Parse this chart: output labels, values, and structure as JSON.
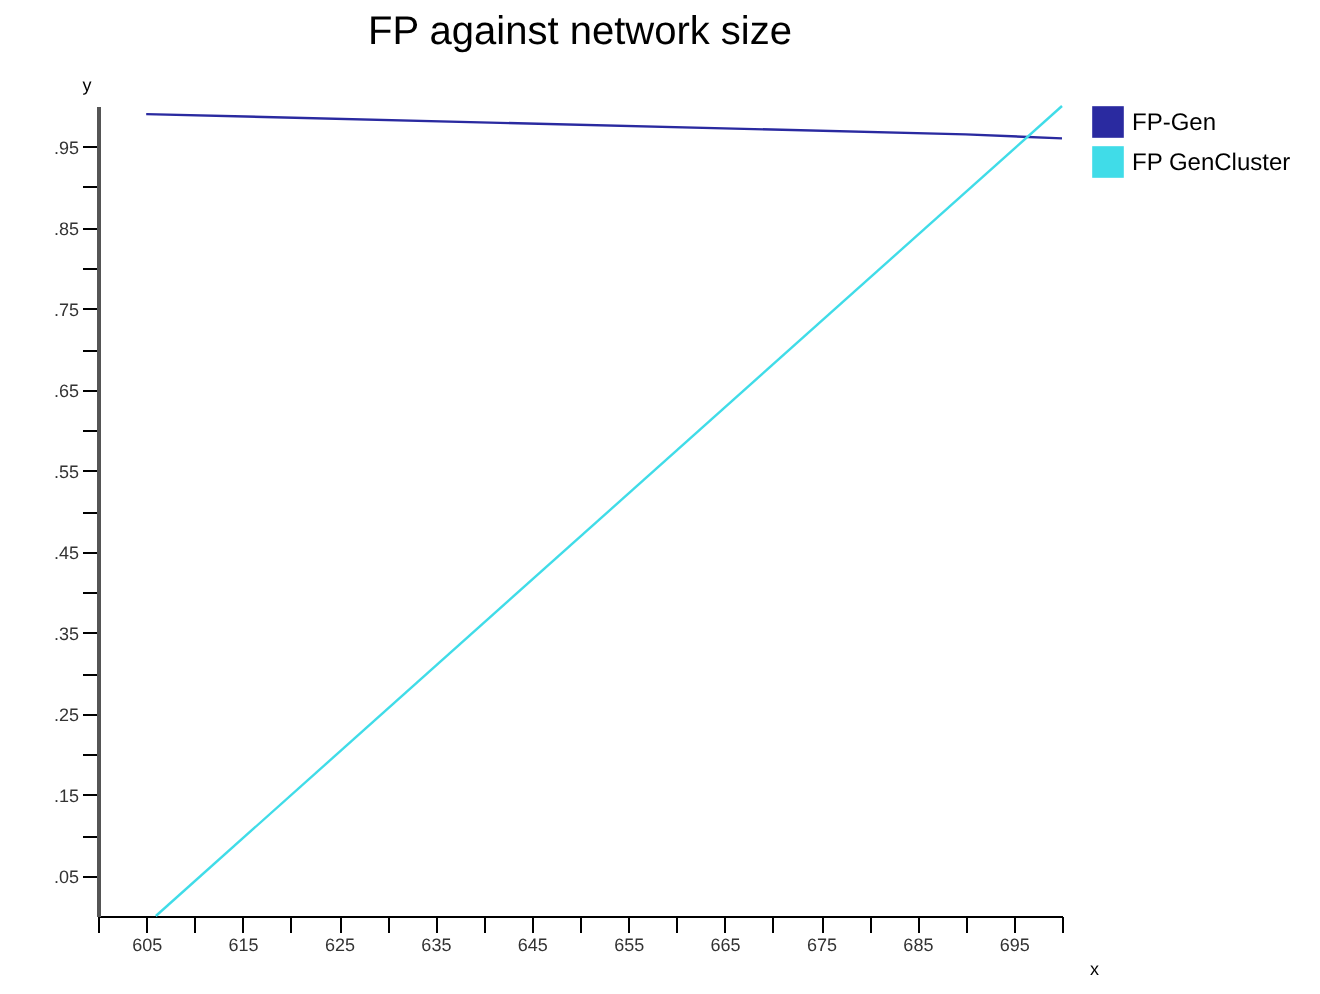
{
  "chart_data": {
    "type": "line",
    "title": "FP against network size",
    "xlabel": "x",
    "ylabel": "y",
    "series": [
      {
        "name": "FP-Gen",
        "color": "#2a2aa0",
        "x": [
          605,
          690,
          700
        ],
        "values": [
          0.99,
          0.965,
          0.96
        ]
      },
      {
        "name": "FP GenCluster",
        "color": "#40dce8",
        "x": [
          606,
          700
        ],
        "values": [
          0,
          1.0
        ]
      }
    ],
    "xlim": [
      600,
      700
    ],
    "xticks": [
      {
        "value": 600,
        "label": null
      },
      605,
      {
        "value": 610,
        "label": null
      },
      615,
      {
        "value": 620,
        "label": null
      },
      625,
      {
        "value": 630,
        "label": null
      },
      635,
      {
        "value": 640,
        "label": null
      },
      645,
      {
        "value": 650,
        "label": null
      },
      655,
      {
        "value": 660,
        "label": null
      },
      665,
      {
        "value": 670,
        "label": null
      },
      675,
      {
        "value": 680,
        "label": null
      },
      685,
      {
        "value": 690,
        "label": null
      },
      695,
      {
        "value": 700,
        "label": null
      }
    ],
    "ylim": [
      0,
      1.0
    ],
    "yticks": [
      {
        "value": 0.05,
        "label": ".05"
      },
      {
        "value": 0.1,
        "label": null
      },
      {
        "value": 0.15,
        "label": ".15"
      },
      {
        "value": 0.2,
        "label": null
      },
      {
        "value": 0.25,
        "label": ".25"
      },
      {
        "value": 0.3,
        "label": null
      },
      {
        "value": 0.35,
        "label": ".35"
      },
      {
        "value": 0.4,
        "label": null
      },
      {
        "value": 0.45,
        "label": ".45"
      },
      {
        "value": 0.5,
        "label": null
      },
      {
        "value": 0.55,
        "label": ".55"
      },
      {
        "value": 0.6,
        "label": null
      },
      {
        "value": 0.65,
        "label": ".65"
      },
      {
        "value": 0.7,
        "label": null
      },
      {
        "value": 0.75,
        "label": ".75"
      },
      {
        "value": 0.8,
        "label": null
      },
      {
        "value": 0.85,
        "label": ".85"
      },
      {
        "value": 0.9,
        "label": null
      },
      {
        "value": 0.95,
        "label": ".95"
      }
    ],
    "grid": false,
    "legend": "right",
    "marker": "none",
    "line_style": "solid"
  }
}
